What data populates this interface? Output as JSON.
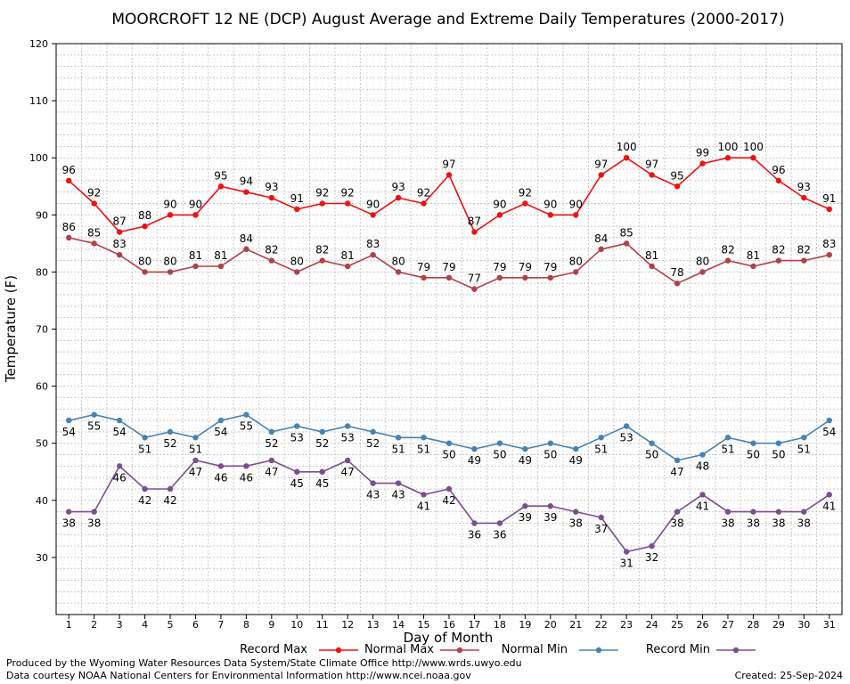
{
  "chart_data": {
    "type": "line",
    "title": "MOORCROFT 12 NE (DCP) August Average and Extreme Daily Temperatures (2000-2017)",
    "xlabel": "Day of Month",
    "ylabel": "Temperature (F)",
    "x": [
      1,
      2,
      3,
      4,
      5,
      6,
      7,
      8,
      9,
      10,
      11,
      12,
      13,
      14,
      15,
      16,
      17,
      18,
      19,
      20,
      21,
      22,
      23,
      24,
      25,
      26,
      27,
      28,
      29,
      30,
      31
    ],
    "ylim": [
      20,
      120
    ],
    "yticks": [
      30,
      40,
      50,
      60,
      70,
      80,
      90,
      100,
      110,
      120
    ],
    "grid": true,
    "legend": "bottom",
    "series": [
      {
        "name": "Record Max",
        "color": "#ee1111",
        "values": [
          96,
          92,
          87,
          88,
          90,
          90,
          95,
          94,
          93,
          91,
          92,
          92,
          90,
          93,
          92,
          97,
          87,
          90,
          92,
          90,
          90,
          97,
          100,
          97,
          95,
          99,
          100,
          100,
          96,
          93,
          91
        ]
      },
      {
        "name": "Normal Max",
        "color": "#b0414a",
        "values": [
          86,
          85,
          83,
          80,
          80,
          81,
          81,
          84,
          82,
          80,
          82,
          81,
          83,
          80,
          79,
          79,
          77,
          79,
          79,
          79,
          80,
          84,
          85,
          81,
          78,
          80,
          82,
          81,
          82,
          82,
          83
        ]
      },
      {
        "name": "Normal Min",
        "color": "#4682b4",
        "values": [
          54,
          55,
          54,
          51,
          52,
          51,
          54,
          55,
          52,
          53,
          52,
          53,
          52,
          51,
          51,
          50,
          49,
          50,
          49,
          50,
          49,
          51,
          53,
          50,
          47,
          48,
          51,
          50,
          50,
          51,
          54
        ]
      },
      {
        "name": "Record Min",
        "color": "#7b4f8f",
        "values": [
          38,
          38,
          46,
          42,
          42,
          47,
          46,
          46,
          47,
          45,
          45,
          47,
          43,
          43,
          41,
          42,
          36,
          36,
          39,
          39,
          38,
          37,
          31,
          32,
          38,
          41,
          38,
          38,
          38,
          38,
          41
        ]
      }
    ]
  },
  "footer": {
    "produced_by": "Produced by the Wyoming Water Resources Data System/State Climate Office http://www.wrds.uwyo.edu",
    "courtesy": "Data courtesy NOAA National Centers for Environmental Information http://www.ncei.noaa.gov",
    "created": "Created:  25-Sep-2024"
  }
}
